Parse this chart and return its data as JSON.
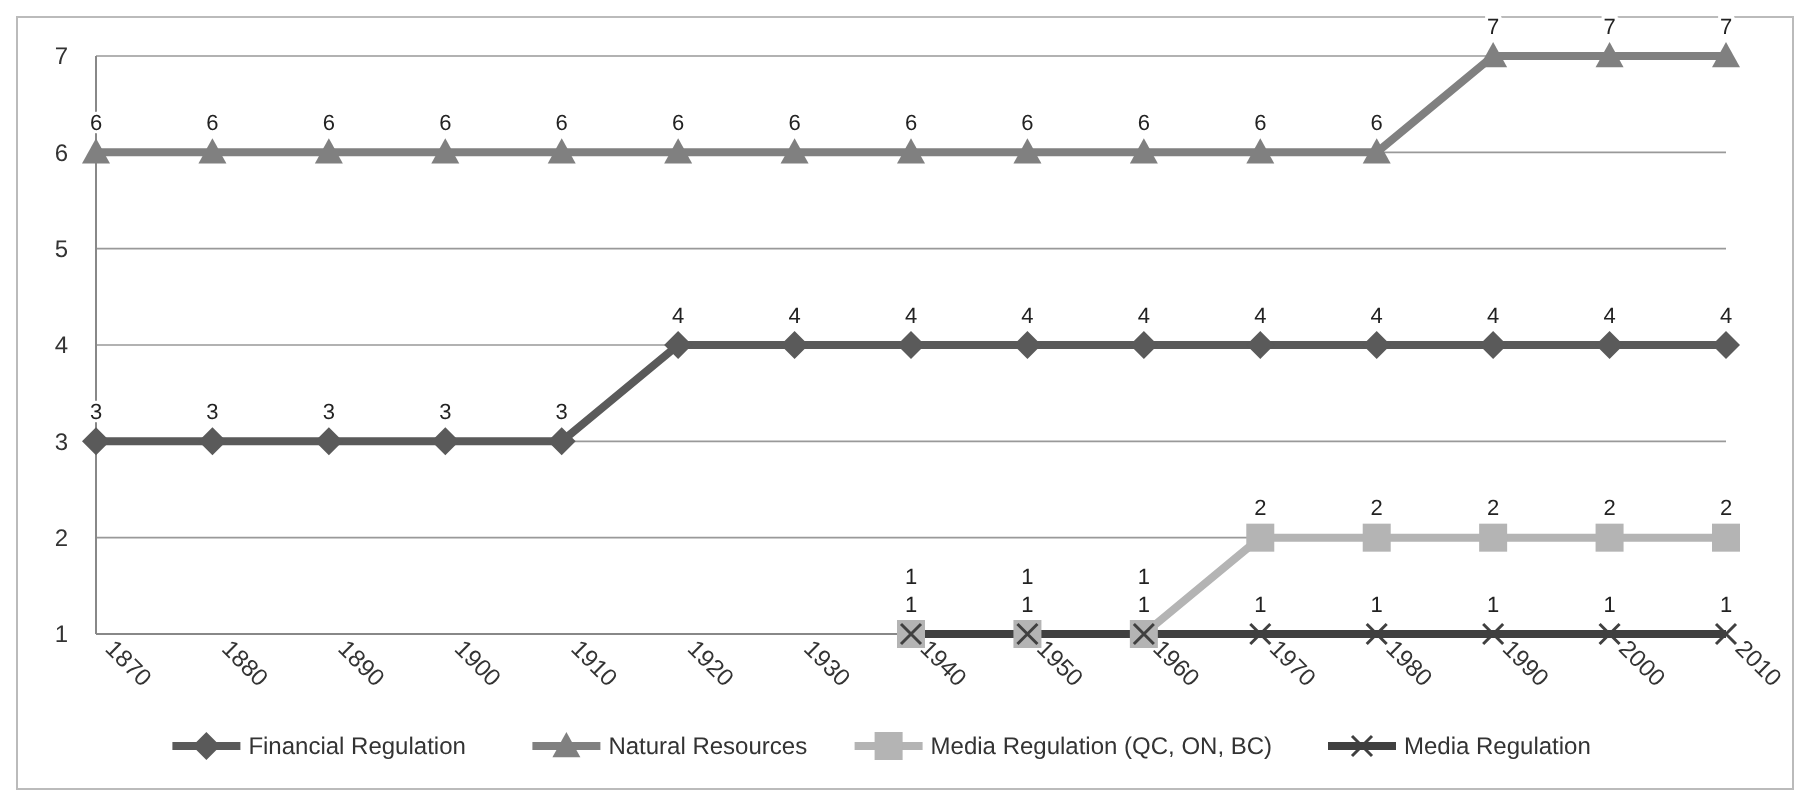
{
  "chart_data": {
    "type": "line",
    "categories": [
      "1870",
      "1880",
      "1890",
      "1900",
      "1910",
      "1920",
      "1930",
      "1940",
      "1950",
      "1960",
      "1970",
      "1980",
      "1990",
      "2000",
      "2010"
    ],
    "series": [
      {
        "name": "Financial Regulation",
        "color": "#5a5a5a",
        "marker": "diamond",
        "values": [
          3,
          3,
          3,
          3,
          3,
          4,
          4,
          4,
          4,
          4,
          4,
          4,
          4,
          4,
          4
        ]
      },
      {
        "name": "Natural Resources",
        "color": "#808080",
        "marker": "triangle",
        "values": [
          6,
          6,
          6,
          6,
          6,
          6,
          6,
          6,
          6,
          6,
          6,
          6,
          7,
          7,
          7
        ]
      },
      {
        "name": "Media Regulation (QC, ON, BC)",
        "color": "#b4b4b4",
        "marker": "square",
        "values": [
          null,
          null,
          null,
          null,
          null,
          null,
          null,
          1,
          1,
          1,
          2,
          2,
          2,
          2,
          2
        ]
      },
      {
        "name": "Media Regulation",
        "color": "#404040",
        "marker": "cross",
        "values": [
          null,
          null,
          null,
          null,
          null,
          null,
          null,
          1,
          1,
          1,
          1,
          1,
          1,
          1,
          1
        ]
      }
    ],
    "ylim": [
      1,
      7
    ],
    "yticks": [
      1,
      2,
      3,
      4,
      5,
      6,
      7
    ],
    "grid": "y",
    "legend": "bottom",
    "data_labels": true
  }
}
